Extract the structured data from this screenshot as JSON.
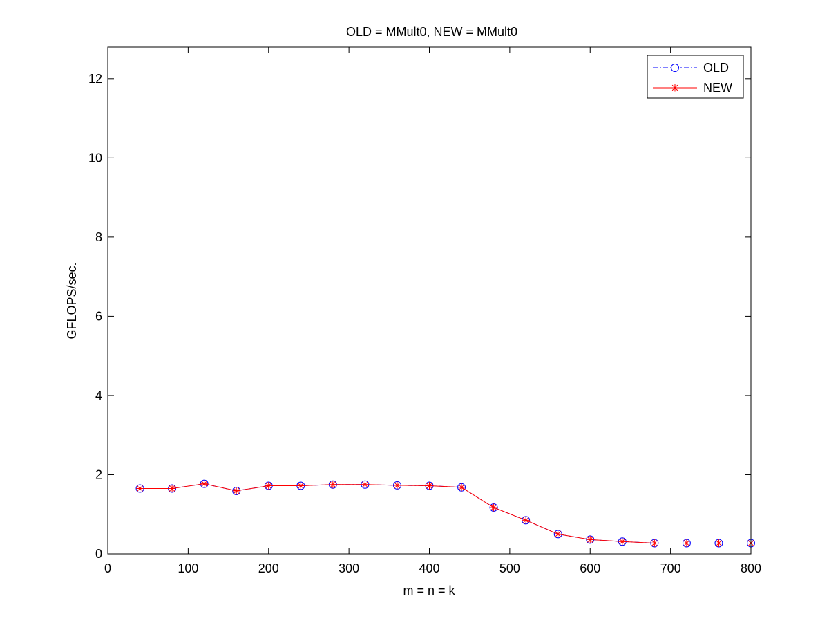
{
  "chart_data": {
    "type": "line",
    "title": "OLD = MMult0, NEW = MMult0",
    "xlabel": "m = n = k",
    "ylabel": "GFLOPS/sec.",
    "xlim": [
      0,
      800
    ],
    "ylim": [
      0,
      12.8
    ],
    "xticks": [
      0,
      100,
      200,
      300,
      400,
      500,
      600,
      700,
      800
    ],
    "yticks": [
      0,
      2,
      4,
      6,
      8,
      10,
      12
    ],
    "grid": false,
    "legend_position": "top-right",
    "x": [
      40,
      80,
      120,
      160,
      200,
      240,
      280,
      320,
      360,
      400,
      440,
      480,
      520,
      560,
      600,
      640,
      680,
      720,
      760,
      800
    ],
    "series": [
      {
        "name": "OLD",
        "color": "#0000ff",
        "marker": "circle",
        "line_style": "dash-dot",
        "values": [
          1.65,
          1.65,
          1.77,
          1.59,
          1.72,
          1.72,
          1.75,
          1.75,
          1.73,
          1.72,
          1.68,
          1.17,
          0.85,
          0.5,
          0.36,
          0.31,
          0.27,
          0.27,
          0.27,
          0.27
        ]
      },
      {
        "name": "NEW",
        "color": "#ff0000",
        "marker": "asterisk",
        "line_style": "solid",
        "values": [
          1.65,
          1.65,
          1.77,
          1.59,
          1.72,
          1.72,
          1.75,
          1.75,
          1.73,
          1.72,
          1.68,
          1.17,
          0.85,
          0.5,
          0.36,
          0.31,
          0.27,
          0.27,
          0.27,
          0.27
        ]
      }
    ]
  }
}
